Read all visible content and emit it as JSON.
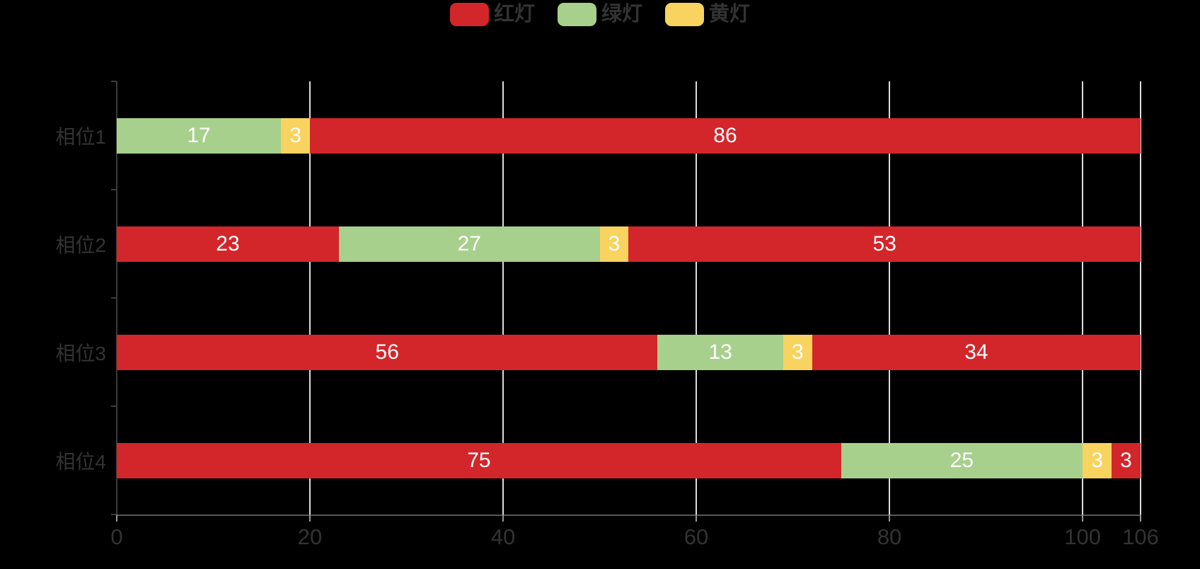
{
  "colors": {
    "background": "#000000",
    "red": "#d2262b",
    "green": "#a7d08c",
    "yellow": "#f9d35f",
    "axis_text": "#333333",
    "bar_label": "#ffffff",
    "gridline": "#dcdcdc",
    "y_axis_line": "#3c3c3c",
    "x_axis_line": "#565656"
  },
  "chart_data": {
    "type": "bar",
    "orientation": "horizontal",
    "stacked": true,
    "title": "",
    "xlabel": "",
    "ylabel": "",
    "xlim": [
      0,
      106
    ],
    "x_ticks": [
      "0",
      "20",
      "40",
      "60",
      "80",
      "100",
      "106"
    ],
    "x_tick_values": [
      0,
      20,
      40,
      60,
      80,
      100,
      106
    ],
    "grid": true,
    "legend_position": "top-center",
    "legend": [
      {
        "label": "红灯",
        "color": "#d2262b"
      },
      {
        "label": "绿灯",
        "color": "#a7d08c"
      },
      {
        "label": "黄灯",
        "color": "#f9d35f"
      }
    ],
    "categories": [
      "相位1",
      "相位2",
      "相位3",
      "相位4"
    ],
    "rows": [
      {
        "category": "相位1",
        "segments": [
          {
            "series": "绿灯",
            "value": 17
          },
          {
            "series": "黄灯",
            "value": 3
          },
          {
            "series": "红灯",
            "value": 86
          }
        ]
      },
      {
        "category": "相位2",
        "segments": [
          {
            "series": "红灯",
            "value": 23
          },
          {
            "series": "绿灯",
            "value": 27
          },
          {
            "series": "黄灯",
            "value": 3
          },
          {
            "series": "红灯",
            "value": 53
          }
        ]
      },
      {
        "category": "相位3",
        "segments": [
          {
            "series": "红灯",
            "value": 56
          },
          {
            "series": "绿灯",
            "value": 13
          },
          {
            "series": "黄灯",
            "value": 3
          },
          {
            "series": "红灯",
            "value": 34
          }
        ]
      },
      {
        "category": "相位4",
        "segments": [
          {
            "series": "红灯",
            "value": 75
          },
          {
            "series": "绿灯",
            "value": 25
          },
          {
            "series": "黄灯",
            "value": 3
          },
          {
            "series": "红灯",
            "value": 3
          }
        ]
      }
    ]
  }
}
